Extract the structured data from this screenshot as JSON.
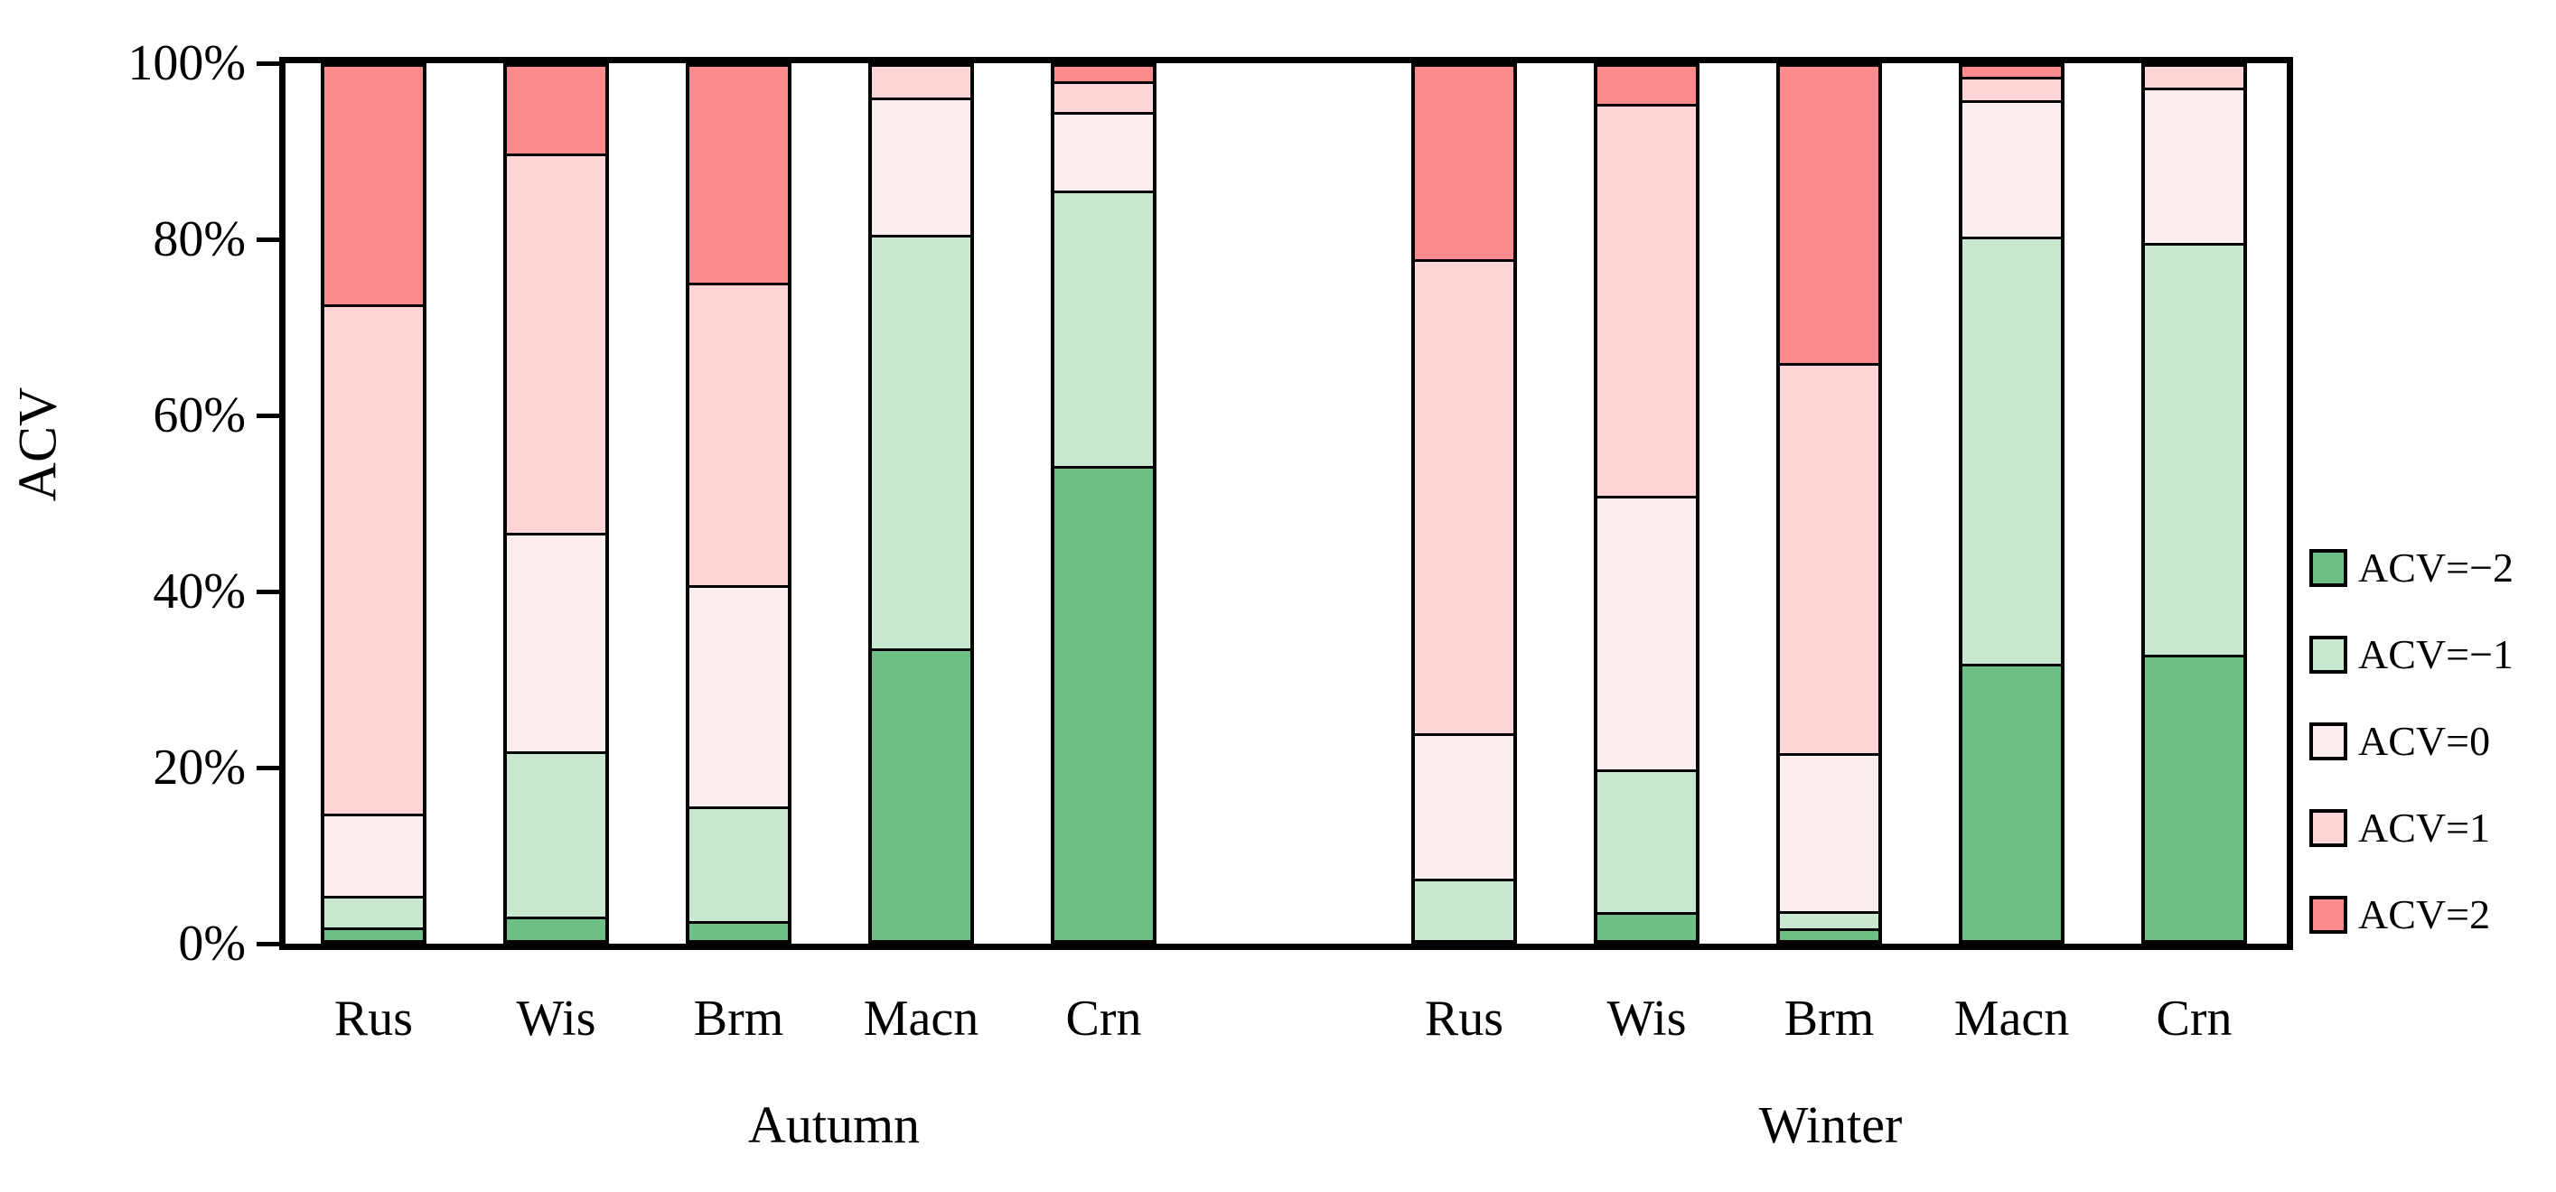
{
  "figure": {
    "y_axis_label": "ACV",
    "y_tick_labels": [
      "0%",
      "20%",
      "40%",
      "60%",
      "80%",
      "100%"
    ]
  },
  "chart_data": {
    "type": "bar",
    "variant": "stacked-100-percent",
    "title": "",
    "xlabel": "",
    "ylabel": "ACV",
    "ylim": [
      0,
      100
    ],
    "y_unit": "%",
    "grid": false,
    "legend_position": "right",
    "groups": [
      "Autumn",
      "Winter"
    ],
    "categories": [
      "Rus",
      "Wis",
      "Brm",
      "Macn",
      "Crn"
    ],
    "series": [
      {
        "name": "ACV=−2",
        "color": "#6FBE86",
        "values": {
          "Autumn": [
            1.2,
            2.4,
            1.9,
            33.4,
            54.7
          ],
          "Winter": [
            0,
            2.9,
            1.0,
            31.7,
            32.7
          ]
        }
      },
      {
        "name": "ACV=−1",
        "color": "#C8E8CF",
        "values": {
          "Autumn": [
            3.3,
            18.9,
            13.0,
            47.5,
            31.6
          ],
          "Winter": [
            6.8,
            16.3,
            1.7,
            49.2,
            47.3
          ]
        }
      },
      {
        "name": "ACV=0",
        "color": "#FCEEEF",
        "values": {
          "Autumn": [
            9.2,
            25.0,
            25.3,
            15.5,
            8.8
          ],
          "Winter": [
            16.5,
            31.4,
            18.0,
            15.5,
            17.6
          ]
        }
      },
      {
        "name": "ACV=1",
        "color": "#FDD5D6",
        "values": {
          "Autumn": [
            58.8,
            43.7,
            34.8,
            3.6,
            3.2
          ],
          "Winter": [
            54.5,
            45.1,
            45.0,
            2.4,
            2.4
          ]
        }
      },
      {
        "name": "ACV=2",
        "color": "#FC8C8C",
        "values": {
          "Autumn": [
            27.5,
            10.0,
            25.0,
            0,
            1.7
          ],
          "Winter": [
            22.2,
            4.3,
            34.3,
            1.2,
            0
          ]
        }
      }
    ]
  }
}
